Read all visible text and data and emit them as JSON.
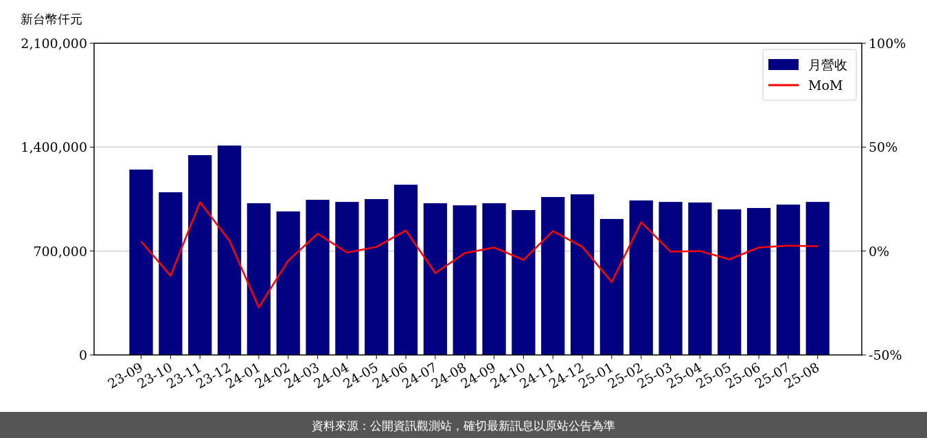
{
  "chart_data": {
    "type": "bar",
    "ylabel": "新台幣仟元",
    "categories": [
      "23-09",
      "23-10",
      "23-11",
      "23-12",
      "24-01",
      "24-02",
      "24-03",
      "24-04",
      "24-05",
      "24-06",
      "24-07",
      "24-08",
      "24-09",
      "24-10",
      "24-11",
      "24-12",
      "25-01",
      "25-02",
      "25-03",
      "25-04",
      "25-05",
      "25-06",
      "25-07",
      "25-08"
    ],
    "series": [
      {
        "name": "月營收",
        "color": "#000080",
        "values": [
          1249000,
          1096000,
          1346000,
          1411000,
          1022000,
          967000,
          1045000,
          1031000,
          1050000,
          1147000,
          1022000,
          1008000,
          1022000,
          976000,
          1064000,
          1082000,
          916000,
          1041000,
          1031000,
          1027000,
          981000,
          990000,
          1013000,
          1031000
        ]
      },
      {
        "name": "MoM",
        "type": "line",
        "axis": "y2",
        "color": "#ff0000",
        "values": [
          4.6,
          -11.9,
          23.5,
          5.0,
          -27.1,
          -4.6,
          8.3,
          -0.7,
          2.0,
          9.9,
          -10.6,
          -1.0,
          1.7,
          -4.3,
          9.6,
          2.0,
          -14.9,
          13.9,
          -0.3,
          0,
          -4.0,
          1.7,
          2.6,
          2.3
        ]
      }
    ],
    "ylim": [
      0,
      2100000
    ],
    "yticks": [
      {
        "value": 0,
        "label": "0"
      },
      {
        "value": 700000,
        "label": "700,000"
      },
      {
        "value": 1400000,
        "label": "1,400,000"
      },
      {
        "value": 2100000,
        "label": "2,100,000"
      }
    ],
    "y2lim": [
      -50,
      100
    ],
    "y2ticks": [
      {
        "value": -50,
        "label": "-50%"
      },
      {
        "value": 0,
        "label": "0%"
      },
      {
        "value": 50,
        "label": "50%"
      },
      {
        "value": 100,
        "label": "100%"
      }
    ],
    "grid": "y",
    "legend": "top right",
    "marker": "none",
    "line_style": "solid",
    "annotations": [
      "資料來源：公開資訊觀測站，確切最新訊息以原站公告為準"
    ]
  }
}
